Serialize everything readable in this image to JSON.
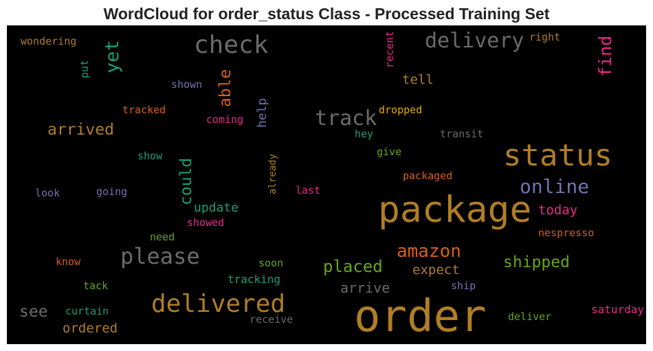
{
  "title": "WordCloud for order_status Class - Processed Training Set",
  "colors": {
    "brown": "#b07e25",
    "gray": "#6b6b6b",
    "orange": "#d5601a",
    "green": "#1b9e77",
    "olive": "#66a61e",
    "purple": "#7570b3",
    "magenta": "#e7298a",
    "gold": "#e6ab02",
    "background": "#000000"
  },
  "words": [
    {
      "text": "order",
      "color": "brown"
    },
    {
      "text": "package",
      "color": "brown"
    },
    {
      "text": "status",
      "color": "brown"
    },
    {
      "text": "delivered",
      "color": "brown"
    },
    {
      "text": "check",
      "color": "gray"
    },
    {
      "text": "please",
      "color": "gray"
    },
    {
      "text": "delivery",
      "color": "gray"
    },
    {
      "text": "track",
      "color": "gray"
    },
    {
      "text": "online",
      "color": "purple"
    },
    {
      "text": "amazon",
      "color": "orange"
    },
    {
      "text": "placed",
      "color": "olive"
    },
    {
      "text": "shipped",
      "color": "olive"
    },
    {
      "text": "arrived",
      "color": "brown"
    },
    {
      "text": "yet",
      "color": "green"
    },
    {
      "text": "able",
      "color": "orange"
    },
    {
      "text": "find",
      "color": "magenta"
    },
    {
      "text": "could",
      "color": "green"
    },
    {
      "text": "arrive",
      "color": "gray"
    },
    {
      "text": "expect",
      "color": "brown"
    },
    {
      "text": "see",
      "color": "gray"
    },
    {
      "text": "ordered",
      "color": "brown"
    },
    {
      "text": "update",
      "color": "green"
    },
    {
      "text": "today",
      "color": "magenta"
    },
    {
      "text": "tell",
      "color": "brown"
    },
    {
      "text": "help",
      "color": "purple"
    },
    {
      "text": "tracking",
      "color": "green"
    },
    {
      "text": "saturday",
      "color": "magenta"
    },
    {
      "text": "wondering",
      "color": "brown"
    },
    {
      "text": "right",
      "color": "brown"
    },
    {
      "text": "recent",
      "color": "magenta"
    },
    {
      "text": "put",
      "color": "green"
    },
    {
      "text": "shown",
      "color": "purple"
    },
    {
      "text": "tracked",
      "color": "orange"
    },
    {
      "text": "coming",
      "color": "magenta"
    },
    {
      "text": "dropped",
      "color": "gold"
    },
    {
      "text": "hey",
      "color": "green"
    },
    {
      "text": "transit",
      "color": "gray"
    },
    {
      "text": "give",
      "color": "olive"
    },
    {
      "text": "show",
      "color": "green"
    },
    {
      "text": "already",
      "color": "brown"
    },
    {
      "text": "packaged",
      "color": "orange"
    },
    {
      "text": "look",
      "color": "purple"
    },
    {
      "text": "going",
      "color": "purple"
    },
    {
      "text": "last",
      "color": "magenta"
    },
    {
      "text": "showed",
      "color": "magenta"
    },
    {
      "text": "need",
      "color": "olive"
    },
    {
      "text": "nespresso",
      "color": "orange"
    },
    {
      "text": "know",
      "color": "orange"
    },
    {
      "text": "soon",
      "color": "olive"
    },
    {
      "text": "tack",
      "color": "olive"
    },
    {
      "text": "ship",
      "color": "purple"
    },
    {
      "text": "curtain",
      "color": "green"
    },
    {
      "text": "receive",
      "color": "gray"
    },
    {
      "text": "deliver",
      "color": "olive"
    }
  ]
}
